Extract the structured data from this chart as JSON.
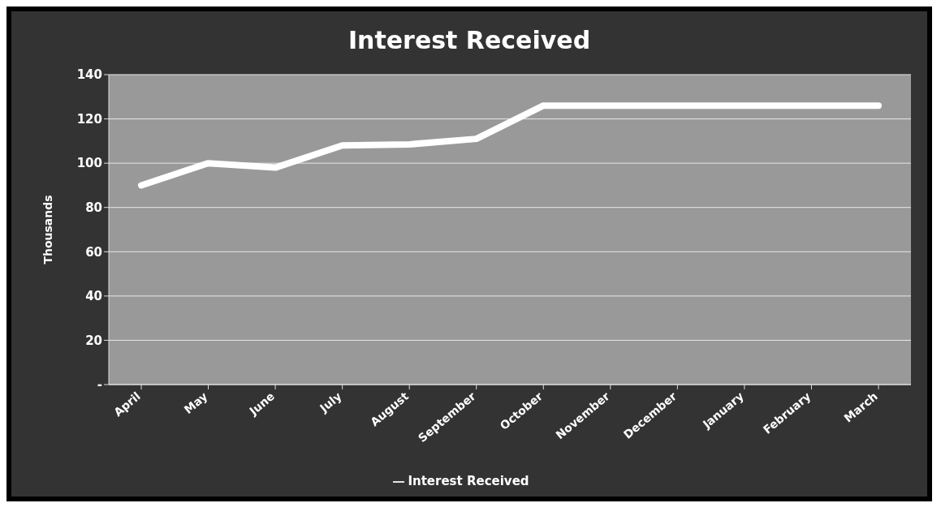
{
  "chart_data": {
    "type": "line",
    "title": "Interest Received",
    "ylabel": "Thousands",
    "categories": [
      "April",
      "May",
      "June",
      "July",
      "August",
      "September",
      "October",
      "November",
      "December",
      "January",
      "February",
      "March"
    ],
    "series": [
      {
        "name": "Interest Received",
        "color": "#ffffff",
        "values": [
          90,
          100,
          98,
          108,
          108.5,
          111,
          126,
          126,
          126,
          126,
          126,
          126
        ]
      }
    ],
    "ylim": [
      0,
      140
    ],
    "yticks": [
      {
        "value": 0,
        "label": "-"
      },
      20,
      40,
      60,
      80,
      100,
      120,
      140
    ],
    "grid": "y",
    "legend": "bottom",
    "marker": "none",
    "line_style": "solid"
  }
}
